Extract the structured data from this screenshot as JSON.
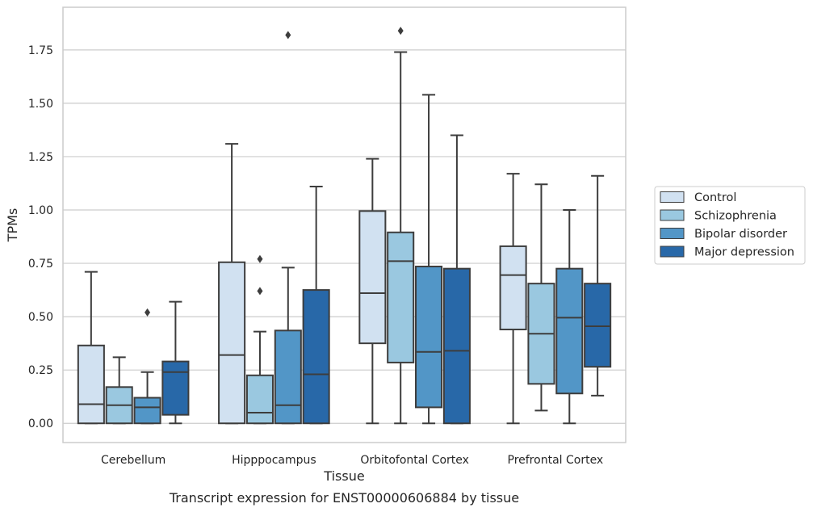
{
  "chart_data": {
    "type": "box",
    "title": "Transcript expression for ENST00000606884 by tissue",
    "xlabel": "Tissue",
    "ylabel": "TPMs",
    "ylim": [
      -0.09,
      1.95
    ],
    "yticks": [
      "0.00",
      "0.25",
      "0.50",
      "0.75",
      "1.00",
      "1.25",
      "1.50",
      "1.75"
    ],
    "grid": "horizontal",
    "legend_position": "right",
    "categories": [
      "Cerebellum",
      "Hipppocampus",
      "Orbitofontal Cortex",
      "Prefrontal Cortex"
    ],
    "series": [
      {
        "name": "Control",
        "color": "#d1e1f1",
        "boxes": [
          {
            "whisker_low": 0.0,
            "q1": 0.0,
            "median": 0.09,
            "q3": 0.365,
            "whisker_high": 0.71,
            "outliers": []
          },
          {
            "whisker_low": 0.0,
            "q1": 0.0,
            "median": 0.32,
            "q3": 0.755,
            "whisker_high": 1.31,
            "outliers": []
          },
          {
            "whisker_low": 0.0,
            "q1": 0.375,
            "median": 0.61,
            "q3": 0.995,
            "whisker_high": 1.24,
            "outliers": []
          },
          {
            "whisker_low": 0.0,
            "q1": 0.44,
            "median": 0.695,
            "q3": 0.83,
            "whisker_high": 1.17,
            "outliers": []
          }
        ]
      },
      {
        "name": "Schizophrenia",
        "color": "#9ac8e0",
        "boxes": [
          {
            "whisker_low": 0.0,
            "q1": 0.0,
            "median": 0.085,
            "q3": 0.17,
            "whisker_high": 0.31,
            "outliers": []
          },
          {
            "whisker_low": 0.0,
            "q1": 0.0,
            "median": 0.05,
            "q3": 0.225,
            "whisker_high": 0.43,
            "outliers": [
              0.62,
              0.77
            ]
          },
          {
            "whisker_low": 0.0,
            "q1": 0.285,
            "median": 0.76,
            "q3": 0.895,
            "whisker_high": 1.74,
            "outliers": [
              1.84
            ]
          },
          {
            "whisker_low": 0.06,
            "q1": 0.185,
            "median": 0.42,
            "q3": 0.655,
            "whisker_high": 1.12,
            "outliers": []
          }
        ]
      },
      {
        "name": "Bipolar disorder",
        "color": "#5296c7",
        "boxes": [
          {
            "whisker_low": 0.0,
            "q1": 0.0,
            "median": 0.075,
            "q3": 0.12,
            "whisker_high": 0.24,
            "outliers": [
              0.52
            ]
          },
          {
            "whisker_low": 0.0,
            "q1": 0.0,
            "median": 0.085,
            "q3": 0.435,
            "whisker_high": 0.73,
            "outliers": [
              1.82
            ]
          },
          {
            "whisker_low": 0.0,
            "q1": 0.075,
            "median": 0.335,
            "q3": 0.735,
            "whisker_high": 1.54,
            "outliers": []
          },
          {
            "whisker_low": 0.0,
            "q1": 0.14,
            "median": 0.495,
            "q3": 0.725,
            "whisker_high": 1.0,
            "outliers": []
          }
        ]
      },
      {
        "name": "Major depression",
        "color": "#2868a8",
        "boxes": [
          {
            "whisker_low": 0.0,
            "q1": 0.04,
            "median": 0.24,
            "q3": 0.29,
            "whisker_high": 0.57,
            "outliers": []
          },
          {
            "whisker_low": 0.0,
            "q1": 0.0,
            "median": 0.23,
            "q3": 0.625,
            "whisker_high": 1.11,
            "outliers": []
          },
          {
            "whisker_low": 0.0,
            "q1": 0.0,
            "median": 0.34,
            "q3": 0.725,
            "whisker_high": 1.35,
            "outliers": []
          },
          {
            "whisker_low": 0.13,
            "q1": 0.265,
            "median": 0.455,
            "q3": 0.655,
            "whisker_high": 1.16,
            "outliers": []
          }
        ]
      }
    ]
  }
}
